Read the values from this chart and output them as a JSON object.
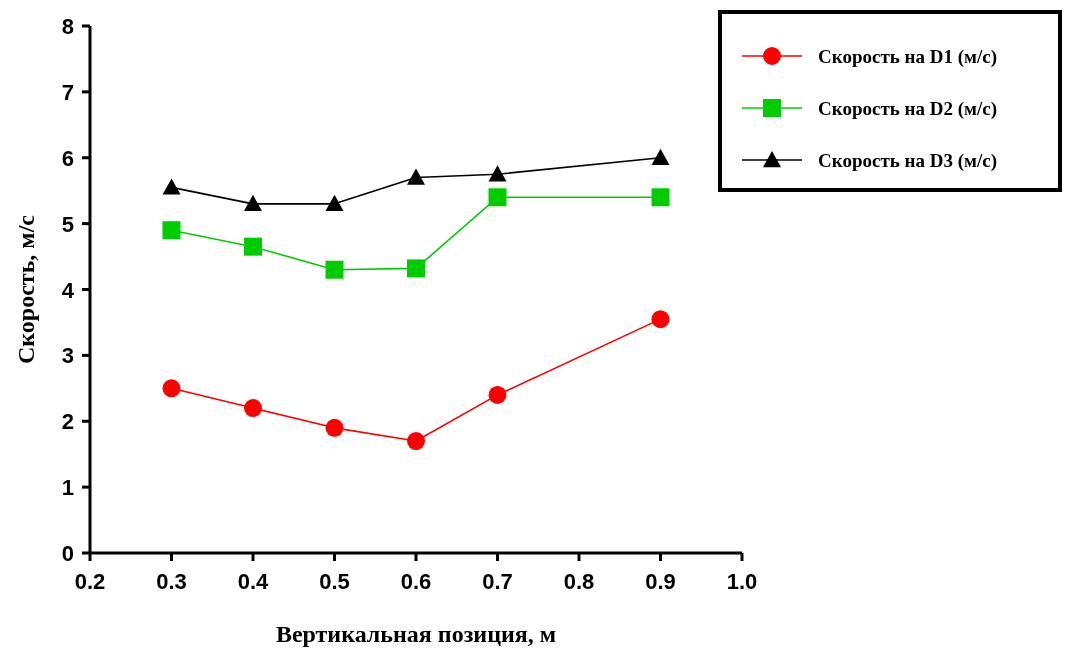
{
  "chart_data": {
    "type": "line",
    "xlabel": "Вертикальная позиция, м",
    "ylabel": "Скорость, м/с",
    "x": [
      0.3,
      0.4,
      0.5,
      0.6,
      0.7,
      0.9
    ],
    "series": [
      {
        "name": "Скорость на D1 (м/с)",
        "color": "#ff0000",
        "marker": "circle",
        "values": [
          2.5,
          2.2,
          1.9,
          1.7,
          2.4,
          3.55
        ]
      },
      {
        "name": "Скорость на D2 (м/с)",
        "color": "#00cc00",
        "marker": "square",
        "values": [
          4.9,
          4.65,
          4.3,
          4.32,
          5.4,
          5.4
        ]
      },
      {
        "name": "Скорость на D3 (м/с)",
        "color": "#000000",
        "marker": "triangle",
        "values": [
          5.55,
          5.3,
          5.3,
          5.7,
          5.75,
          6.0
        ]
      }
    ],
    "xlim": [
      0.2,
      1.0
    ],
    "xticks": [
      0.2,
      0.3,
      0.4,
      0.5,
      0.6,
      0.7,
      0.8,
      0.9,
      {
        "value": 1.0,
        "label": "1.0"
      }
    ],
    "ylim": [
      0,
      8
    ],
    "yticks": [
      0,
      1,
      2,
      3,
      4,
      5,
      6,
      7,
      8
    ],
    "grid": false,
    "legend": "top right",
    "line_style": "solid"
  }
}
